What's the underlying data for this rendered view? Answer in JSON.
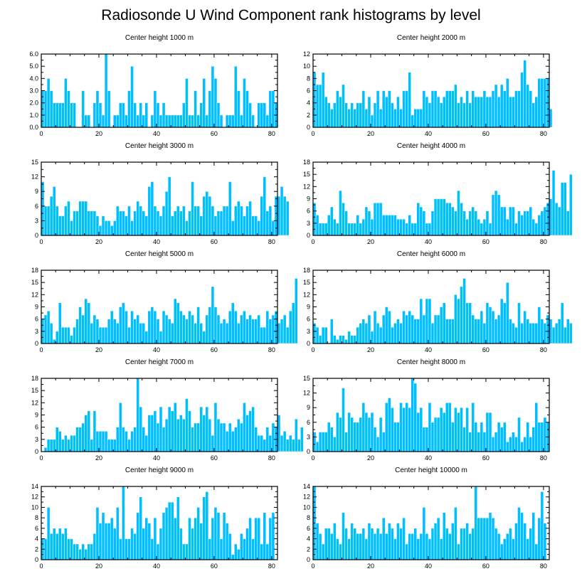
{
  "title": "Radiosonde U Wind Component rank histograms by level",
  "colors": {
    "bar": "#00BFFF",
    "bar_edge": "#ffffff",
    "axis": "#000000"
  },
  "chart_data": [
    {
      "type": "bar",
      "title": "Center height 1000 m",
      "xlabel": "",
      "ylabel": "",
      "xlim": [
        0,
        82
      ],
      "ylim": [
        0,
        6
      ],
      "xticks": [
        0,
        20,
        40,
        60,
        80
      ],
      "yticks": [
        0,
        1,
        2,
        3,
        4,
        5,
        6
      ],
      "ytick_labels": [
        "0.0",
        "1.0",
        "2.0",
        "3.0",
        "4.0",
        "5.0",
        "6.0"
      ],
      "values": [
        3,
        3,
        4,
        3,
        2,
        2,
        2,
        2,
        4,
        3,
        2,
        2,
        0,
        0,
        3,
        1,
        1,
        0,
        2,
        3,
        2,
        1,
        6,
        3,
        0,
        1,
        1,
        2,
        2,
        1,
        3,
        5,
        2,
        1,
        2,
        1,
        2,
        0,
        1,
        3,
        2,
        1,
        2,
        1,
        1,
        1,
        1,
        1,
        1,
        2,
        4,
        1,
        1,
        3,
        1,
        2,
        4,
        1,
        3,
        5,
        4,
        2,
        1,
        0,
        1,
        1,
        1,
        5,
        3,
        1,
        4,
        3,
        2,
        1,
        0,
        2,
        2,
        2,
        1,
        3,
        3,
        2
      ]
    },
    {
      "type": "bar",
      "title": "Center height 2000 m",
      "xlabel": "",
      "ylabel": "",
      "xlim": [
        0,
        82
      ],
      "ylim": [
        0,
        12
      ],
      "xticks": [
        0,
        20,
        40,
        60,
        80
      ],
      "yticks": [
        0,
        2,
        4,
        6,
        8,
        10,
        12
      ],
      "values": [
        9,
        7,
        7,
        9,
        5,
        4,
        3,
        4,
        6,
        5,
        7,
        4,
        3,
        4,
        3,
        4,
        4,
        6,
        3,
        5,
        2,
        4,
        6,
        3,
        6,
        5,
        6,
        4,
        3,
        5,
        3,
        6,
        6,
        9,
        2,
        3,
        3,
        3,
        6,
        5,
        4,
        6,
        6,
        5,
        4,
        5,
        6,
        6,
        6,
        7,
        4,
        5,
        4,
        6,
        4,
        6,
        5,
        5,
        5,
        6,
        5,
        5,
        6,
        7,
        5,
        7,
        6,
        8,
        5,
        5,
        6,
        6,
        9,
        11,
        7,
        6,
        4,
        5,
        8,
        8,
        8,
        8,
        3
      ]
    },
    {
      "type": "bar",
      "title": "Center height 3000 m",
      "xlabel": "",
      "ylabel": "",
      "xlim": [
        0,
        82
      ],
      "ylim": [
        0,
        15
      ],
      "xticks": [
        0,
        20,
        40,
        60,
        80
      ],
      "yticks": [
        0,
        3,
        6,
        9,
        12,
        15
      ],
      "values": [
        11,
        6,
        6,
        8,
        10,
        6,
        4,
        4,
        6,
        7,
        3,
        5,
        5,
        7,
        7,
        7,
        5,
        5,
        5,
        4,
        2,
        4,
        3,
        3,
        2,
        3,
        6,
        5,
        5,
        4,
        6,
        3,
        5,
        7,
        6,
        5,
        4,
        10,
        11,
        6,
        5,
        4,
        6,
        9,
        12,
        4,
        5,
        6,
        5,
        6,
        3,
        5,
        11,
        6,
        6,
        4,
        8,
        9,
        8,
        6,
        4,
        5,
        5,
        6,
        6,
        11,
        3,
        6,
        7,
        6,
        4,
        6,
        7,
        4,
        4,
        3,
        8,
        12,
        5,
        6,
        3,
        8,
        8,
        10,
        8,
        7
      ]
    },
    {
      "type": "bar",
      "title": "Center height 4000 m",
      "xlabel": "",
      "ylabel": "",
      "xlim": [
        0,
        82
      ],
      "ylim": [
        0,
        18
      ],
      "xticks": [
        0,
        20,
        40,
        60,
        80
      ],
      "yticks": [
        0,
        3,
        6,
        9,
        12,
        15,
        18
      ],
      "values": [
        8,
        5,
        3,
        3,
        3,
        5,
        7,
        4,
        3,
        11,
        8,
        6,
        3,
        3,
        3,
        5,
        3,
        4,
        7,
        6,
        4,
        8,
        8,
        8,
        5,
        5,
        5,
        5,
        5,
        4,
        4,
        4,
        3,
        5,
        3,
        3,
        8,
        7,
        6,
        3,
        3,
        6,
        9,
        9,
        9,
        9,
        8,
        8,
        7,
        6,
        11,
        8,
        6,
        4,
        6,
        7,
        6,
        4,
        3,
        4,
        6,
        3,
        10,
        11,
        10,
        7,
        7,
        4,
        7,
        7,
        3,
        6,
        5,
        6,
        6,
        7,
        4,
        3,
        5,
        6,
        7,
        8,
        9,
        16,
        8,
        7,
        13,
        13,
        6,
        15
      ]
    },
    {
      "type": "bar",
      "title": "Center height 5000 m",
      "xlabel": "",
      "ylabel": "",
      "xlim": [
        0,
        82
      ],
      "ylim": [
        0,
        18
      ],
      "xticks": [
        0,
        20,
        40,
        60,
        80
      ],
      "yticks": [
        0,
        3,
        6,
        9,
        12,
        15,
        18
      ],
      "values": [
        6,
        7,
        8,
        5,
        1,
        3,
        10,
        4,
        4,
        4,
        2,
        4,
        6,
        9,
        7,
        11,
        10,
        5,
        7,
        6,
        4,
        4,
        4,
        6,
        8,
        6,
        5,
        9,
        10,
        8,
        4,
        8,
        6,
        7,
        5,
        5,
        3,
        8,
        9,
        8,
        6,
        3,
        8,
        7,
        6,
        5,
        11,
        10,
        8,
        7,
        6,
        8,
        7,
        5,
        9,
        5,
        3,
        7,
        9,
        14,
        9,
        7,
        5,
        6,
        5,
        8,
        10,
        8,
        5,
        7,
        8,
        6,
        7,
        6,
        6,
        7,
        4,
        4,
        8,
        6,
        7,
        8,
        5,
        6,
        7,
        4,
        8,
        10,
        16
      ]
    },
    {
      "type": "bar",
      "title": "Center height 6000 m",
      "xlabel": "",
      "ylabel": "",
      "xlim": [
        0,
        82
      ],
      "ylim": [
        0,
        18
      ],
      "xticks": [
        0,
        20,
        40,
        60,
        80
      ],
      "yticks": [
        0,
        3,
        6,
        9,
        12,
        15,
        18
      ],
      "values": [
        5,
        4,
        2,
        4,
        4,
        0,
        6,
        2,
        1,
        2,
        2,
        1,
        3,
        2,
        2,
        4,
        5,
        6,
        5,
        7,
        3,
        8,
        5,
        4,
        7,
        9,
        8,
        4,
        5,
        6,
        5,
        8,
        7,
        8,
        7,
        6,
        6,
        11,
        7,
        11,
        11,
        5,
        7,
        7,
        9,
        10,
        6,
        6,
        6,
        12,
        11,
        14,
        16,
        10,
        10,
        7,
        6,
        6,
        8,
        5,
        10,
        9,
        8,
        6,
        7,
        11,
        10,
        15,
        6,
        5,
        4,
        10,
        5,
        8,
        6,
        5,
        5,
        5,
        9,
        6,
        5,
        7,
        6,
        4,
        5,
        6,
        10,
        4,
        6,
        5
      ]
    },
    {
      "type": "bar",
      "title": "Center height 7000 m",
      "xlabel": "",
      "ylabel": "",
      "xlim": [
        0,
        82
      ],
      "ylim": [
        0,
        18
      ],
      "xticks": [
        0,
        20,
        40,
        60,
        80
      ],
      "yticks": [
        0,
        3,
        6,
        9,
        12,
        15,
        18
      ],
      "values": [
        0,
        1,
        3,
        3,
        3,
        6,
        5,
        3,
        4,
        3,
        4,
        4,
        6,
        6,
        7,
        9,
        10,
        3,
        10,
        5,
        5,
        5,
        5,
        3,
        3,
        3,
        6,
        12,
        6,
        5,
        3,
        5,
        6,
        18,
        11,
        6,
        4,
        9,
        9,
        10,
        7,
        11,
        6,
        8,
        11,
        10,
        12,
        8,
        9,
        8,
        13,
        10,
        6,
        7,
        7,
        11,
        9,
        11,
        8,
        4,
        12,
        8,
        7,
        7,
        5,
        7,
        5,
        6,
        8,
        7,
        12,
        9,
        10,
        11,
        6,
        4,
        4,
        3,
        6,
        4,
        7,
        6,
        9,
        4,
        5,
        3,
        4,
        3,
        8,
        3,
        6
      ]
    },
    {
      "type": "bar",
      "title": "Center height 8000 m",
      "xlabel": "",
      "ylabel": "",
      "xlim": [
        0,
        82
      ],
      "ylim": [
        0,
        15
      ],
      "xticks": [
        0,
        20,
        40,
        60,
        80
      ],
      "yticks": [
        0,
        3,
        6,
        9,
        12,
        15
      ],
      "values": [
        4,
        2,
        4,
        4,
        4,
        6,
        5,
        3,
        8,
        7,
        13,
        4,
        8,
        7,
        6,
        6,
        7,
        10,
        8,
        7,
        8,
        5,
        3,
        7,
        4,
        10,
        11,
        9,
        6,
        6,
        10,
        9,
        10,
        9,
        15,
        14,
        8,
        9,
        5,
        5,
        10,
        6,
        7,
        7,
        9,
        8,
        10,
        10,
        6,
        9,
        8,
        9,
        5,
        9,
        4,
        10,
        6,
        4,
        6,
        4,
        8,
        8,
        3,
        4,
        6,
        5,
        6,
        2,
        3,
        4,
        3,
        7,
        2,
        3,
        6,
        3,
        5,
        10,
        6,
        6,
        7,
        6
      ]
    },
    {
      "type": "bar",
      "title": "Center height 9000 m",
      "xlabel": "",
      "ylabel": "",
      "xlim": [
        0,
        82
      ],
      "ylim": [
        0,
        14
      ],
      "xticks": [
        0,
        20,
        40,
        60,
        80
      ],
      "yticks": [
        0,
        2,
        4,
        6,
        8,
        10,
        12,
        14
      ],
      "values": [
        4,
        4,
        10,
        5,
        6,
        5,
        6,
        5,
        6,
        4,
        4,
        3,
        3,
        2,
        3,
        2,
        3,
        3,
        5,
        10,
        7,
        9,
        7,
        7,
        8,
        6,
        10,
        4,
        14,
        4,
        4,
        6,
        5,
        9,
        12,
        6,
        8,
        7,
        4,
        8,
        3,
        6,
        9,
        10,
        11,
        11,
        8,
        12,
        6,
        3,
        3,
        8,
        6,
        8,
        10,
        7,
        12,
        13,
        4,
        8,
        10,
        9,
        4,
        9,
        7,
        5,
        1,
        3,
        2,
        5,
        4,
        6,
        8,
        4,
        8,
        8,
        3,
        9,
        3,
        8,
        9
      ]
    },
    {
      "type": "bar",
      "title": "Center height 10000 m",
      "xlabel": "",
      "ylabel": "",
      "xlim": [
        0,
        82
      ],
      "ylim": [
        0,
        14
      ],
      "xticks": [
        0,
        20,
        40,
        60,
        80
      ],
      "yticks": [
        0,
        2,
        4,
        6,
        8,
        10,
        12,
        14
      ],
      "values": [
        14,
        7,
        5,
        3,
        6,
        6,
        5,
        7,
        4,
        3,
        9,
        6,
        4,
        7,
        6,
        5,
        5,
        6,
        4,
        7,
        6,
        5,
        6,
        5,
        8,
        5,
        7,
        6,
        4,
        7,
        6,
        8,
        3,
        5,
        5,
        6,
        4,
        5,
        10,
        5,
        4,
        6,
        7,
        8,
        4,
        9,
        6,
        5,
        7,
        10,
        3,
        6,
        6,
        7,
        5,
        6,
        14,
        8,
        8,
        8,
        8,
        9,
        8,
        6,
        5,
        3,
        4,
        5,
        6,
        4,
        7,
        10,
        9,
        7,
        4,
        6,
        9,
        3,
        8,
        13,
        7
      ]
    }
  ]
}
